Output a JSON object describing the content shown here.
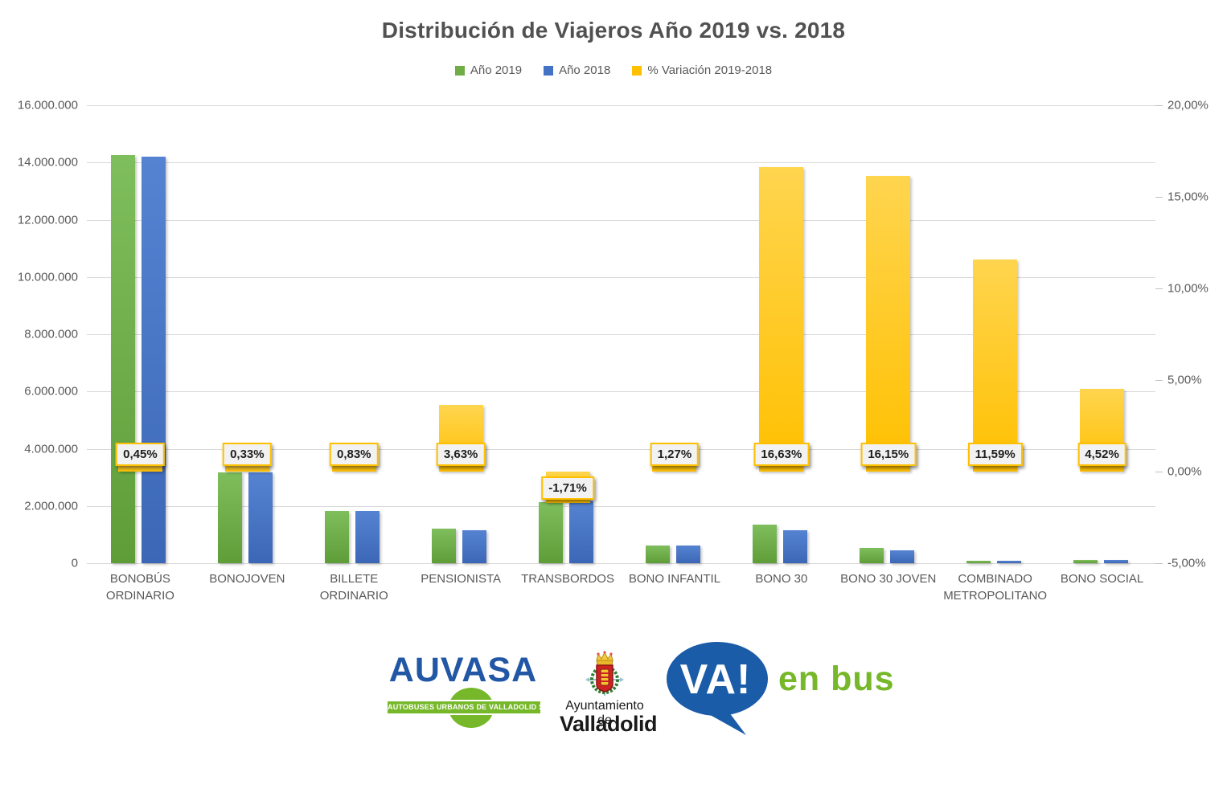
{
  "title": "Distribución de Viajeros Año 2019 vs. 2018",
  "legend": [
    {
      "label": "Año 2019",
      "color": "#70AD47"
    },
    {
      "label": "Año 2018",
      "color": "#4472C4"
    },
    {
      "label": "% Variación 2019-2018",
      "color": "#FFC000"
    }
  ],
  "chart_data": {
    "type": "bar",
    "title": "Distribución de Viajeros Año 2019 vs. 2018",
    "categories": [
      "BONOBÚS ORDINARIO",
      "BONOJOVEN",
      "BILLETE ORDINARIO",
      "PENSIONISTA",
      "TRANSBORDOS",
      "BONO INFANTIL",
      "BONO 30",
      "BONO 30 JOVEN",
      "COMBINADO METROPOLITANO",
      "BONO SOCIAL"
    ],
    "series": [
      {
        "name": "Año 2019",
        "axis": "left",
        "color": "#70AD47",
        "gradient": [
          "#7FBE5C",
          "#5E9D38"
        ],
        "values": [
          14260000,
          3170000,
          1835000,
          1205000,
          2133000,
          615000,
          1350000,
          530000,
          80000,
          120000
        ]
      },
      {
        "name": "Año 2018",
        "axis": "left",
        "color": "#4472C4",
        "gradient": [
          "#5583D2",
          "#3C67B7"
        ],
        "values": [
          14196000,
          3159600,
          1819900,
          1162800,
          2170000,
          607300,
          1157500,
          456300,
          71700,
          114800
        ]
      },
      {
        "name": "% Variación 2019-2018",
        "axis": "right",
        "color": "#FFC000",
        "gradient": [
          "#FFD54F",
          "#FFC000"
        ],
        "values": [
          0.45,
          0.33,
          0.83,
          3.63,
          -1.71,
          1.27,
          16.63,
          16.15,
          11.59,
          4.52
        ],
        "labels": [
          "0,45%",
          "0,33%",
          "0,83%",
          "3,63%",
          "-1,71%",
          "1,27%",
          "16,63%",
          "16,15%",
          "11,59%",
          "4,52%"
        ]
      }
    ],
    "left_axis": {
      "min": 0,
      "max": 16000000,
      "step": 2000000,
      "ticks": [
        "0",
        "2.000.000",
        "4.000.000",
        "6.000.000",
        "8.000.000",
        "10.000.000",
        "12.000.000",
        "14.000.000",
        "16.000.000"
      ]
    },
    "right_axis": {
      "min": -5,
      "max": 20,
      "step": 5,
      "ticks": [
        "-5,00%",
        "0,00%",
        "5,00%",
        "10,00%",
        "15,00%",
        "20,00%"
      ]
    },
    "grid": true,
    "legend_position": "top"
  },
  "footer": {
    "auvasa": {
      "wordmark": "AUVASA",
      "banner": "AUTOBUSES URBANOS DE VALLADOLID S.A.",
      "blue": "#2157A4",
      "green": "#76B82A"
    },
    "ayuntamiento": {
      "line1": "Ayuntamiento de",
      "line2": "Valladolid"
    },
    "va_en_bus": {
      "bubble_text": "VA!",
      "suffix": "en bus",
      "blue": "#1A5CA8",
      "green": "#76B82A"
    }
  }
}
